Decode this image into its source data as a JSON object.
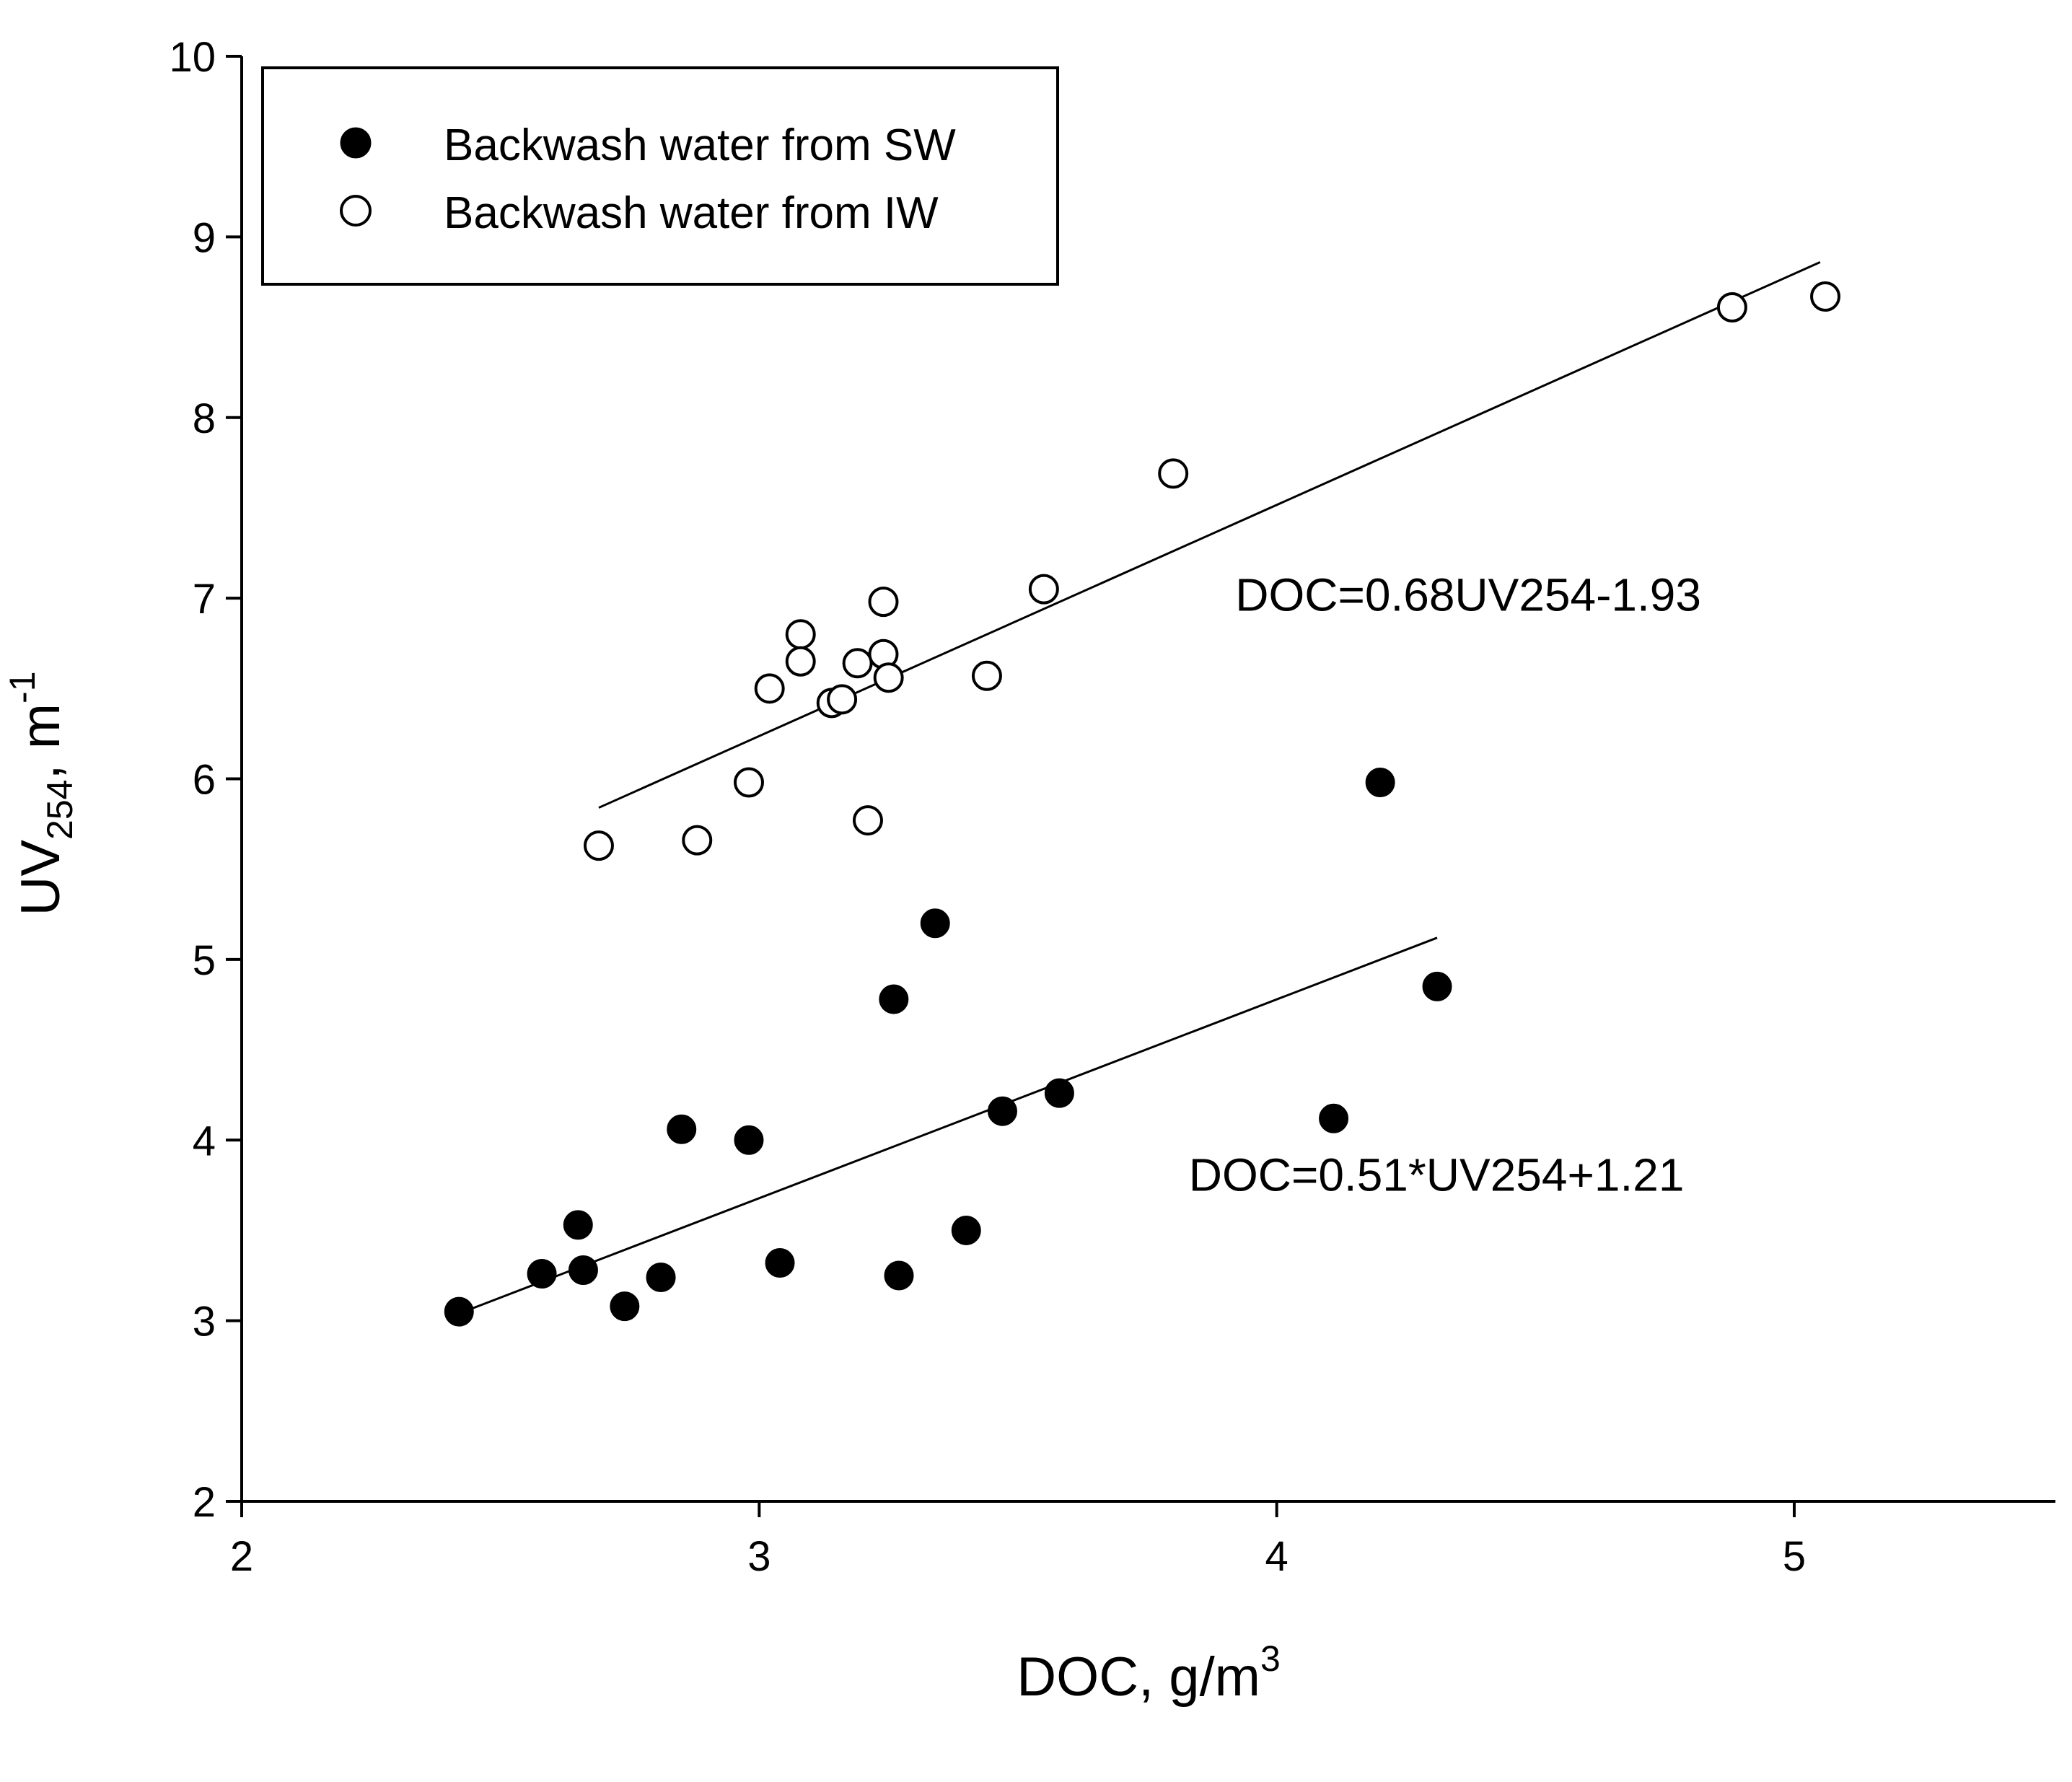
{
  "chart_data": {
    "type": "scatter",
    "title": "",
    "xlabel": {
      "main": "DOC, g/m",
      "sup": "3"
    },
    "ylabel": {
      "main": "UV",
      "sub": "254",
      "mid": ", m",
      "sup": "-1"
    },
    "xlim": [
      2,
      5.5
    ],
    "ylim": [
      2,
      10
    ],
    "xticks": [
      2,
      3,
      4,
      5
    ],
    "yticks": [
      2,
      3,
      4,
      5,
      6,
      7,
      8,
      9,
      10
    ],
    "grid": false,
    "legend_position": "top-left",
    "series": [
      {
        "name": "Backwash water from SW",
        "marker": "filled-circle",
        "points": [
          [
            2.42,
            3.05
          ],
          [
            2.58,
            3.26
          ],
          [
            2.65,
            3.53
          ],
          [
            2.66,
            3.28
          ],
          [
            2.74,
            3.08
          ],
          [
            2.81,
            3.24
          ],
          [
            2.85,
            4.06
          ],
          [
            2.98,
            4.0
          ],
          [
            3.04,
            3.32
          ],
          [
            3.26,
            4.78
          ],
          [
            3.27,
            3.25
          ],
          [
            3.34,
            5.2
          ],
          [
            3.4,
            3.5
          ],
          [
            3.47,
            4.16
          ],
          [
            3.58,
            4.26
          ],
          [
            4.11,
            4.12
          ],
          [
            4.2,
            5.98
          ],
          [
            4.31,
            4.85
          ]
        ],
        "fit": {
          "x": [
            2.42,
            4.31
          ],
          "y": [
            3.04,
            5.12
          ]
        }
      },
      {
        "name": "Backwash water from IW",
        "marker": "open-circle",
        "points": [
          [
            2.69,
            5.63
          ],
          [
            2.88,
            5.66
          ],
          [
            2.98,
            5.98
          ],
          [
            3.02,
            6.5
          ],
          [
            3.08,
            6.8
          ],
          [
            3.08,
            6.65
          ],
          [
            3.14,
            6.42
          ],
          [
            3.16,
            6.44
          ],
          [
            3.19,
            6.64
          ],
          [
            3.21,
            5.77
          ],
          [
            3.24,
            6.98
          ],
          [
            3.24,
            6.69
          ],
          [
            3.25,
            6.56
          ],
          [
            3.44,
            6.57
          ],
          [
            3.55,
            7.05
          ],
          [
            3.8,
            7.69
          ],
          [
            4.88,
            8.61
          ],
          [
            5.06,
            8.67
          ]
        ],
        "fit": {
          "x": [
            2.69,
            5.05
          ],
          "y": [
            5.84,
            8.86
          ]
        }
      }
    ],
    "annotations": [
      {
        "text": "DOC=0.68UV254-1.93",
        "x": 3.92,
        "y": 6.93
      },
      {
        "text": "DOC=0.51*UV254+1.21",
        "x": 3.83,
        "y": 3.72
      }
    ]
  }
}
